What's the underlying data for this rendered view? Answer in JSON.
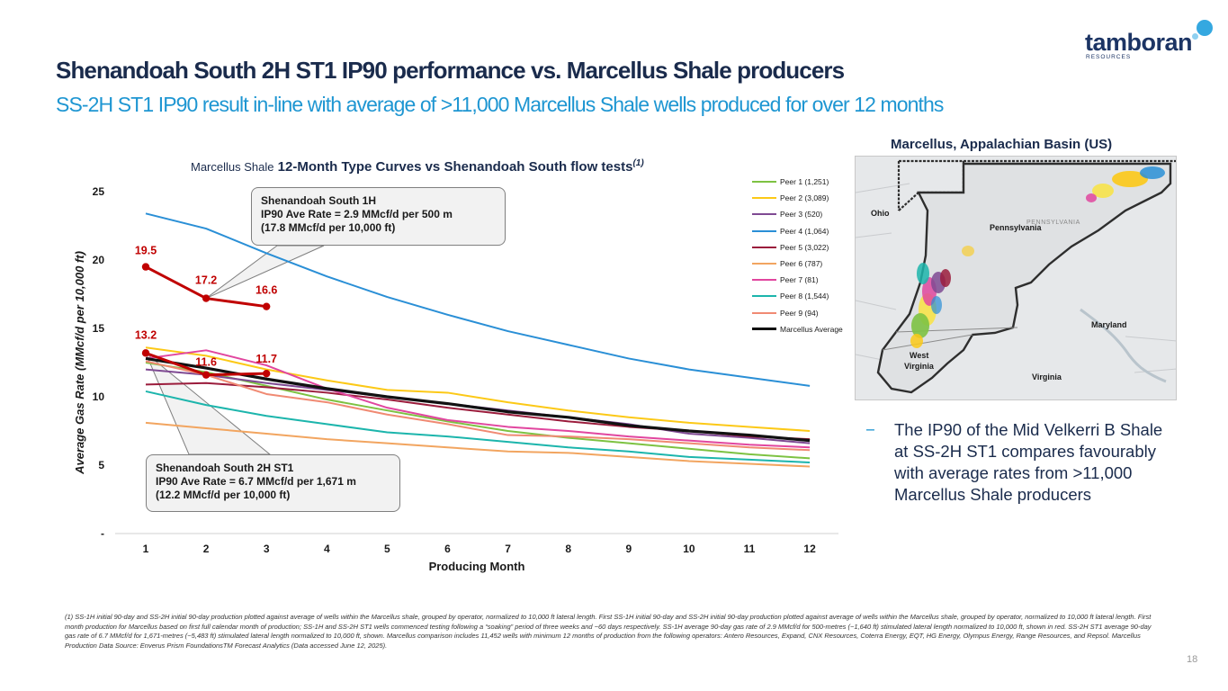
{
  "logo": {
    "name": "tamboran",
    "subtext": "RESOURCES"
  },
  "title": "Shenandoah South 2H ST1 IP90 performance vs. Marcellus Shale producers",
  "subtitle": "SS-2H ST1 IP90 result in-line with average of >11,000 Marcellus Shale wells produced for over 12 months",
  "chart_data": {
    "type": "line",
    "title_prefix": "Marcellus Shale",
    "title_main": "12-Month Type Curves vs Shenandoah South flow tests",
    "title_note": "(1)",
    "xlabel": "Producing Month",
    "ylabel": "Average Gas Rate (MMcf/d per 10,000 ft)",
    "x": [
      1,
      2,
      3,
      4,
      5,
      6,
      7,
      8,
      9,
      10,
      11,
      12
    ],
    "xlim": [
      0.5,
      12.5
    ],
    "ylim": [
      0,
      25
    ],
    "yticks": [
      0,
      5,
      10,
      15,
      20,
      25
    ],
    "ytick_labels": [
      "-",
      "5",
      "10",
      "15",
      "20",
      "25"
    ],
    "series": [
      {
        "name": "Peer 1 (1,251)",
        "color": "#7dc242",
        "width": 2,
        "values": [
          12.5,
          11.8,
          10.8,
          9.8,
          9.0,
          8.2,
          7.5,
          7.0,
          6.6,
          6.2,
          5.8,
          5.5
        ]
      },
      {
        "name": "Peer 2 (3,089)",
        "color": "#fcc917",
        "width": 2,
        "values": [
          13.6,
          13.0,
          12.0,
          11.2,
          10.5,
          10.3,
          9.6,
          9.0,
          8.5,
          8.1,
          7.8,
          7.5
        ]
      },
      {
        "name": "Peer 3 (520)",
        "color": "#7f4a93",
        "width": 2,
        "values": [
          12.0,
          11.6,
          11.0,
          10.5,
          10.0,
          9.5,
          9.0,
          8.5,
          8.0,
          7.3,
          7.0,
          6.6
        ]
      },
      {
        "name": "Peer 4 (1,064)",
        "color": "#2a8fd6",
        "width": 2,
        "values": [
          23.4,
          22.3,
          20.5,
          18.8,
          17.3,
          16.0,
          14.8,
          13.8,
          12.8,
          12.0,
          11.4,
          10.8
        ]
      },
      {
        "name": "Peer 5 (3,022)",
        "color": "#9b1c3c",
        "width": 2,
        "values": [
          10.9,
          11.0,
          10.7,
          10.3,
          9.8,
          9.2,
          8.7,
          8.2,
          7.8,
          7.5,
          7.1,
          6.9
        ]
      },
      {
        "name": "Peer 6 (787)",
        "color": "#f2a560",
        "width": 2,
        "values": [
          8.1,
          7.7,
          7.3,
          6.9,
          6.6,
          6.3,
          6.0,
          5.9,
          5.6,
          5.3,
          5.1,
          4.9
        ]
      },
      {
        "name": "Peer 7 (81)",
        "color": "#e1469f",
        "width": 2,
        "values": [
          12.8,
          13.4,
          12.3,
          10.6,
          9.2,
          8.3,
          7.8,
          7.5,
          7.1,
          6.8,
          6.5,
          6.3
        ]
      },
      {
        "name": "Peer 8 (1,544)",
        "color": "#1cb5ac",
        "width": 2,
        "values": [
          10.4,
          9.4,
          8.6,
          8.0,
          7.4,
          7.1,
          6.7,
          6.3,
          6.0,
          5.6,
          5.4,
          5.2
        ]
      },
      {
        "name": "Peer 9 (94)",
        "color": "#f08a73",
        "width": 2,
        "values": [
          12.6,
          11.6,
          10.2,
          9.6,
          8.7,
          8.0,
          7.2,
          7.1,
          6.9,
          6.6,
          6.3,
          6.1
        ]
      },
      {
        "name": "Marcellus Average",
        "color": "#111111",
        "width": 3.2,
        "values": [
          12.8,
          12.1,
          11.3,
          10.6,
          10.0,
          9.5,
          8.9,
          8.5,
          7.9,
          7.5,
          7.2,
          6.8
        ]
      }
    ],
    "highlights": [
      {
        "name": "Shenandoah South 1H",
        "color": "#c00000",
        "x": [
          1,
          2,
          3
        ],
        "values": [
          19.5,
          17.2,
          16.6
        ],
        "labels": [
          "19.5",
          "17.2",
          "16.6"
        ]
      },
      {
        "name": "Shenandoah South 2H ST1",
        "color": "#c00000",
        "x": [
          1,
          2,
          3
        ],
        "values": [
          13.2,
          11.6,
          11.7
        ],
        "labels": [
          "13.2",
          "11.6",
          "11.7"
        ]
      }
    ],
    "callouts": [
      {
        "lines": [
          "Shenandoah South 1H",
          "IP90 Ave Rate = 2.9 MMcf/d per 500 m",
          "(17.8 MMcf/d per 10,000 ft)"
        ]
      },
      {
        "lines": [
          "Shenandoah South 2H ST1",
          "IP90 Ave Rate = 6.7 MMcf/d per 1,671 m",
          "(12.2 MMcf/d per 10,000 ft)"
        ]
      }
    ]
  },
  "map": {
    "title": "Marcellus, Appalachian Basin (US)",
    "labels": {
      "ohio": "Ohio",
      "pennsylvania": "Pennsylvania",
      "maryland": "Maryland",
      "west": "West",
      "virginia_wv": "Virginia",
      "virginia": "Virginia"
    },
    "faint_label": "PENNSYLVANIA"
  },
  "bullet": {
    "dash": "−",
    "text": "The IP90 of the Mid Velkerri B Shale at SS-2H ST1 compares favourably with average rates from >11,000 Marcellus Shale producers"
  },
  "footnote": "(1) SS-1H initial 90-day and SS-2H initial 90-day production plotted against average of wells within the Marcellus shale, grouped by operator, normalized to 10,000 ft lateral length. First SS-1H initial 90-day and SS-2H initial 90-day production plotted against average of wells within the Marcellus shale, grouped by operator, normalized to 10,000 ft lateral length. First month production for Marcellus based on first full calendar month of production; SS-1H and SS-2H ST1 wells commenced testing following a “soaking” period of three weeks and ~60 days respectively. SS-1H average 90-day gas rate of 2.9 MMcf/d for 500-metres (~1,640 ft) stimulated lateral length normalized to 10,000 ft, shown in red. SS-2H ST1 average 90-day gas rate of 6.7 MMcf/d for 1,671-metres (~5,483 ft) stimulated lateral length normalized to 10,000 ft, shown. Marcellus comparison includes 11,452 wells with minimum 12 months of production from the following operators: Antero Resources, Expand, CNX Resources, Coterra Energy, EQT, HG Energy, Olympus Energy, Range Resources, and Repsol. Marcellus Production Data Source: Enverus Prism FoundationsTM Forecast Analytics (Data accessed June 12, 2025).",
  "page_number": "18"
}
